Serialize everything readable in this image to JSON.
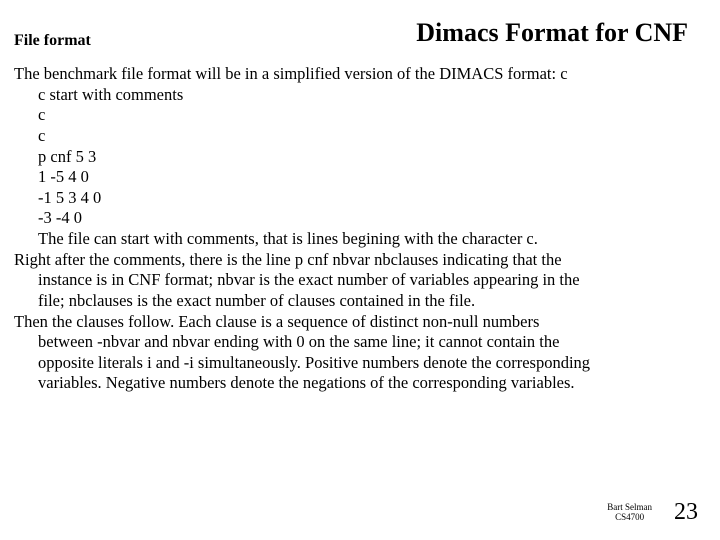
{
  "title": "Dimacs  Format for CNF",
  "subtitle": "File format",
  "para1_lead": "The benchmark file format will be in a simplified version of the DIMACS format: c",
  "code": [
    "c start with comments",
    "c",
    "c",
    "p cnf 5 3",
    "1 -5 4 0",
    "-1 5 3 4 0",
    "-3 -4 0"
  ],
  "para1_tail": "The file can start with comments, that is lines begining with the character c.",
  "para2": {
    "l1": "Right after the comments, there is the line p cnf nbvar nbclauses indicating that the",
    "l2": "instance is in CNF format; nbvar is the exact number of variables appearing in the",
    "l3": "file; nbclauses is the exact number of clauses contained in the file."
  },
  "para3": {
    "l1": "Then the clauses follow. Each clause is a sequence of distinct non-null numbers",
    "l2": "between -nbvar and nbvar ending with 0 on the same line; it cannot contain the",
    "l3": "opposite literals i and -i simultaneously. Positive numbers denote the corresponding",
    "l4": "variables. Negative numbers denote the negations of the corresponding variables."
  },
  "footer": {
    "author": "Bart Selman",
    "course": "CS4700",
    "page": "23"
  }
}
